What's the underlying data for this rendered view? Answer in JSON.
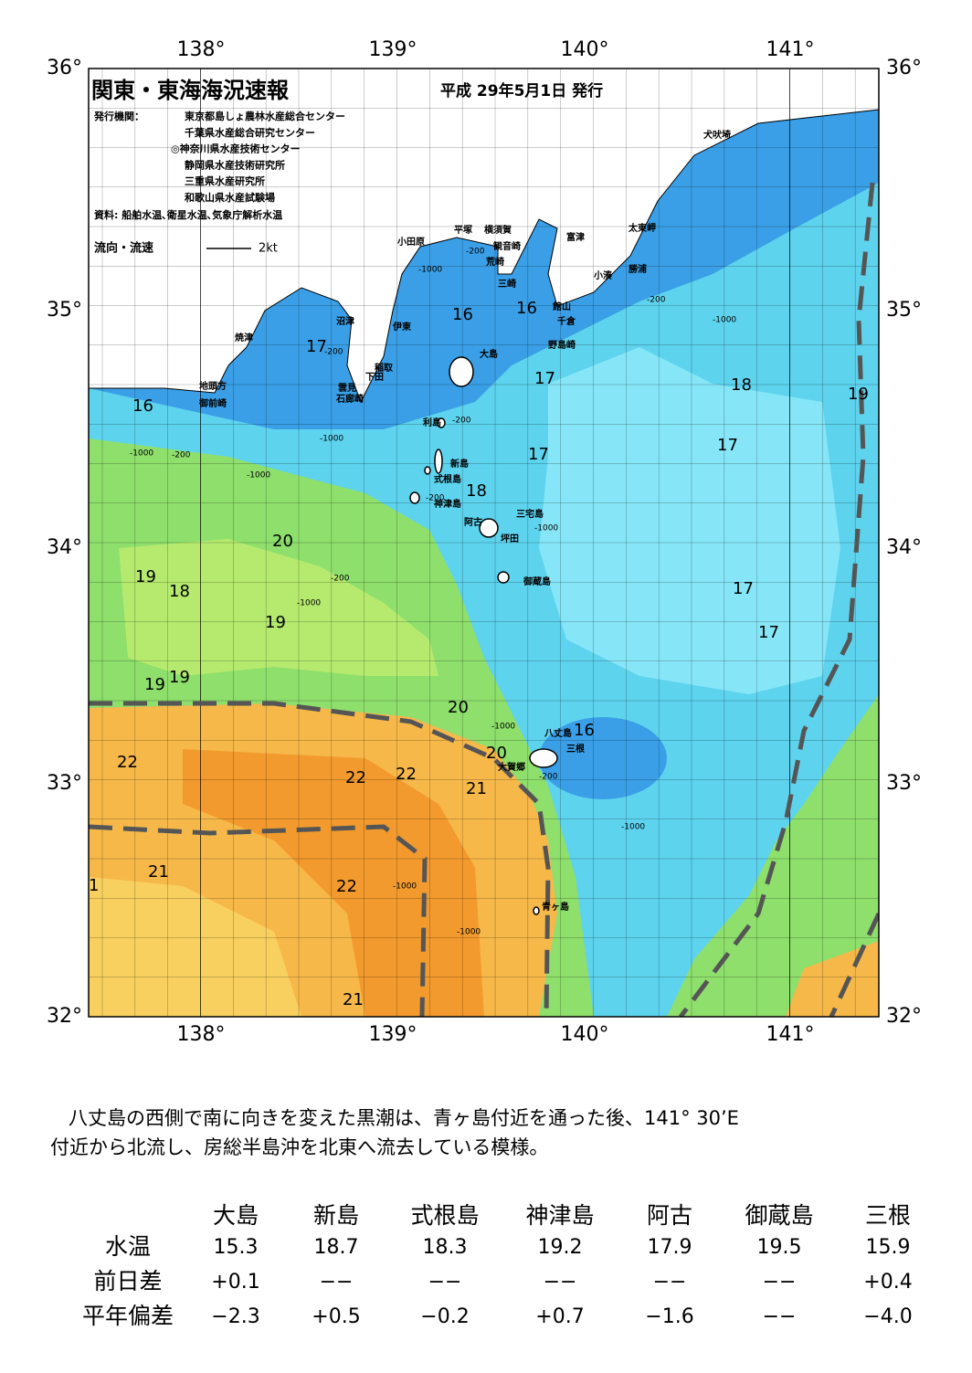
{
  "map": {
    "title": "関東・東海海況速報",
    "date": "平成 29年5月1日 発行",
    "issuer_label": "発行機関：",
    "issuers": [
      "東京都島しょ農林水産総合センター",
      "千葉県水産総合研究センター",
      "◎神奈川県水産技術センター",
      "静岡県水産技術研究所",
      "三重県水産研究所",
      "和歌山県水産試験場"
    ],
    "source": "資料: 船舶水温､衛星水温､気象庁解析水温",
    "legend_label": "流向・流速",
    "legend_scale": "2kt",
    "lon_labels": [
      "138°",
      "139°",
      "140°",
      "141°"
    ],
    "lat_labels": [
      "36°",
      "35°",
      "34°",
      "33°",
      "32°"
    ],
    "place_names": [
      "犬吠埼",
      "太東岬",
      "勝浦",
      "小湊",
      "富津",
      "館山",
      "千倉",
      "野島崎",
      "横須賀",
      "観音崎",
      "荒崎",
      "三崎",
      "平塚",
      "小田原",
      "沼津",
      "伊東",
      "稲取",
      "下田",
      "雲見",
      "石廊崎",
      "焼津",
      "地頭方",
      "御前崎",
      "大島",
      "利島",
      "新島",
      "式根島",
      "神津島",
      "阿古",
      "三宅島",
      "坪田",
      "御蔵島",
      "八丈島",
      "三根",
      "大賀郷",
      "青ヶ島"
    ],
    "isotherm_labels": [
      "17",
      "16",
      "16",
      "16",
      "17",
      "18",
      "19",
      "17",
      "17",
      "18",
      "20",
      "19",
      "18",
      "19",
      "17",
      "17",
      "19",
      "19",
      "20",
      "16",
      "20",
      "22",
      "22",
      "22",
      "21",
      "21",
      "22",
      "1",
      "21"
    ],
    "depth_labels": [
      "-200",
      "-1000",
      "-200",
      "-1000",
      "-200",
      "-1000",
      "-1000",
      "-200",
      "-1000",
      "-200",
      "-1000",
      "-200",
      "-1000",
      "-1000",
      "-200",
      "-1000",
      "-1000",
      "-1000",
      "-200"
    ]
  },
  "summary": {
    "lines": [
      "八丈島の西側で南に向きを変えた黒潮は、青ヶ島付近を通った後、141° 30’E",
      "付近から北流し、房総半島沖を北東へ流去している模様。"
    ]
  },
  "table": {
    "stations": [
      "大島",
      "新島",
      "式根島",
      "神津島",
      "阿古",
      "御蔵島",
      "三根"
    ],
    "rows": [
      {
        "label": "水温",
        "cells": [
          "15.3",
          "18.7",
          "18.3",
          "19.2",
          "17.9",
          "19.5",
          "15.9"
        ]
      },
      {
        "label": "前日差",
        "cells": [
          "+0.1",
          "−−",
          "−−",
          "−−",
          "−−",
          "−−",
          "+0.4"
        ]
      },
      {
        "label": "平年偏差",
        "cells": [
          "−2.3",
          "+0.5",
          "−0.2",
          "+0.7",
          "−1.6",
          "−−",
          "−4.0"
        ]
      }
    ]
  }
}
